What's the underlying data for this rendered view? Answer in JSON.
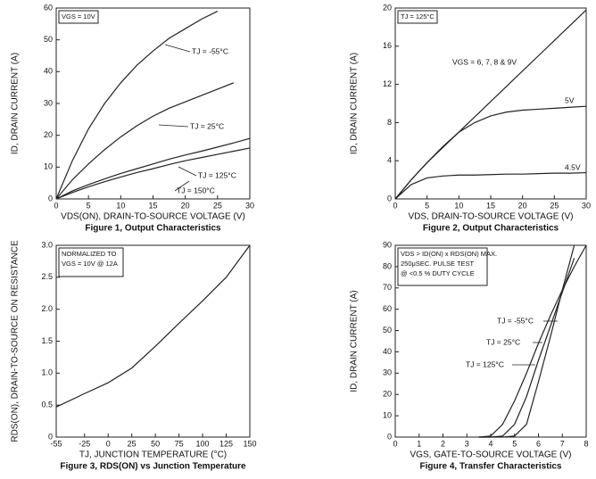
{
  "chart_data": [
    {
      "type": "line",
      "title": "Figure 1,  Output Characteristics",
      "x_label": "VDS(ON), DRAIN-TO-SOURCE VOLTAGE (V)",
      "y_label": "ID, DRAIN CURRENT (A)",
      "annotations": [
        "VGS = 10V"
      ],
      "x": [
        0,
        2.5,
        5,
        7.5,
        10,
        12.5,
        15,
        17.5,
        20,
        22.5,
        25,
        27.5,
        30
      ],
      "series": [
        {
          "name": "TJ = -55°C",
          "color": "#222222",
          "values": [
            0,
            12,
            22,
            30,
            36.5,
            42,
            46.5,
            50.5,
            53.5,
            56.5,
            59,
            null,
            null
          ]
        },
        {
          "name": "TJ = 25°C",
          "color": "#222222",
          "values": [
            0,
            6,
            11,
            15.5,
            19.5,
            23,
            26,
            28.5,
            30.5,
            32.5,
            34.5,
            36.5,
            null
          ]
        },
        {
          "name": "TJ = 125°C",
          "color": "#222222",
          "values": [
            0,
            2.5,
            4.5,
            6.3,
            8,
            9.5,
            11,
            12.5,
            13.8,
            15,
            16.3,
            17.6,
            19
          ]
        },
        {
          "name": "TJ = 150°C",
          "color": "#222222",
          "values": [
            0,
            2,
            3.8,
            5.4,
            6.9,
            8.3,
            9.5,
            10.8,
            12,
            13,
            14,
            15,
            16
          ]
        }
      ],
      "xlim": [
        0,
        30
      ],
      "xticks": [
        0,
        5,
        10,
        15,
        20,
        25,
        30
      ],
      "ylim": [
        0,
        60
      ],
      "yticks": [
        0,
        10,
        20,
        30,
        40,
        50,
        60
      ],
      "grid": false
    },
    {
      "type": "line",
      "title": "Figure 2,  Output Characteristics",
      "x_label": "VDS, DRAIN-TO-SOURCE VOLTAGE (V)",
      "y_label": "ID, DRAIN CURRENT (A)",
      "annotations": [
        "TJ = 125°C"
      ],
      "x": [
        0,
        2.5,
        5,
        7.5,
        10,
        12.5,
        15,
        17.5,
        20,
        22.5,
        25,
        27.5,
        30
      ],
      "series": [
        {
          "name": "VGS = 6, 7, 8 & 9V",
          "color": "#222222",
          "values": [
            0,
            2,
            3.8,
            5.4,
            7,
            8.6,
            10.2,
            11.8,
            13.4,
            15,
            16.6,
            18.2,
            19.8
          ]
        },
        {
          "name": "5V",
          "color": "#222222",
          "values": [
            0,
            2,
            3.8,
            5.5,
            7,
            8,
            8.7,
            9.1,
            9.3,
            9.4,
            9.5,
            9.6,
            9.7
          ]
        },
        {
          "name": "4.5V",
          "color": "#222222",
          "values": [
            0,
            1.5,
            2.2,
            2.4,
            2.5,
            2.5,
            2.55,
            2.6,
            2.6,
            2.65,
            2.7,
            2.7,
            2.75
          ]
        }
      ],
      "xlim": [
        0,
        30
      ],
      "xticks": [
        0,
        5,
        10,
        15,
        20,
        25,
        30
      ],
      "ylim": [
        0,
        20
      ],
      "yticks": [
        0,
        4,
        8,
        12,
        16,
        20
      ],
      "grid": false
    },
    {
      "type": "line",
      "title": "Figure 3,  RDS(ON) vs Junction Temperature",
      "x_label": "TJ,  JUNCTION TEMPERATURE (°C)",
      "y_label": "RDS(ON), DRAIN-TO-SOURCE ON RESISTANCE",
      "annotations": [
        "NORMALIZED TO",
        "VGS = 10V  @  12A"
      ],
      "x": [
        -55,
        -25,
        0,
        25,
        50,
        75,
        100,
        125,
        150
      ],
      "series": [
        {
          "color": "#222222",
          "values": [
            0.47,
            0.68,
            0.85,
            1.08,
            1.42,
            1.78,
            2.13,
            2.5,
            3.0
          ]
        }
      ],
      "xlim": [
        -55,
        150
      ],
      "xticks": [
        -55,
        -25,
        0,
        25,
        50,
        75,
        100,
        125,
        150
      ],
      "ylim": [
        0,
        3
      ],
      "yticks": [
        0,
        0.5,
        {
          "value": 1,
          "label": "1.0"
        },
        1.5,
        {
          "value": 2,
          "label": "2.0"
        },
        2.5,
        {
          "value": 3,
          "label": "3.0"
        }
      ],
      "grid": false
    },
    {
      "type": "line",
      "title": "Figure 4,  Transfer Characteristics",
      "x_label": "VGS, GATE-TO-SOURCE VOLTAGE (V)",
      "y_label": "ID, DRAIN CURRENT (A)",
      "annotations": [
        "VDS > ID(ON) x RDS(ON) MAX.",
        "250μSEC. PULSE TEST",
        "@ <0.5 % DUTY CYCLE"
      ],
      "x": [
        3.5,
        4,
        4.5,
        5,
        5.5,
        6,
        6.5,
        7,
        7.5,
        8
      ],
      "series": [
        {
          "name": "TJ = -55°C",
          "color": "#222222",
          "values": [
            0,
            0,
            0,
            0.5,
            6,
            26,
            47,
            69,
            90,
            null
          ]
        },
        {
          "name": "TJ = 25°C",
          "color": "#222222",
          "values": [
            0,
            0,
            0.5,
            6,
            19,
            36,
            52,
            68,
            84,
            null
          ]
        },
        {
          "name": "TJ = 125°C",
          "color": "#222222",
          "values": [
            0,
            0.5,
            6,
            17,
            30,
            44,
            57,
            69,
            80,
            90
          ]
        }
      ],
      "xlim": [
        0,
        8
      ],
      "xticks": [
        0,
        1,
        2,
        3,
        4,
        5,
        6,
        7,
        8
      ],
      "ylim": [
        0,
        90
      ],
      "yticks": [
        0,
        10,
        20,
        30,
        40,
        50,
        60,
        70,
        80,
        90
      ],
      "grid": false
    }
  ]
}
